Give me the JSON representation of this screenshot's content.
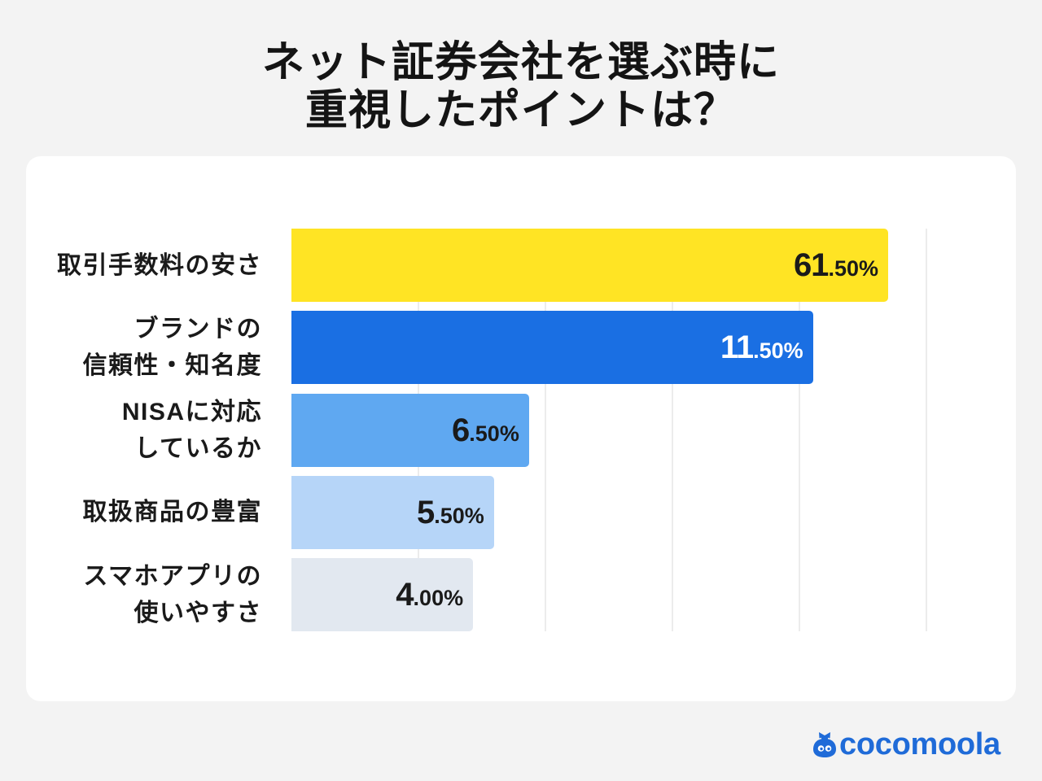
{
  "title": {
    "line1": "ネット証券会社を選ぶ時に",
    "line2": "重視したポイントは？"
  },
  "chart_data": {
    "type": "bar",
    "orientation": "horizontal",
    "categories": [
      "取引手数料の安さ",
      "ブランドの\n信頼性・知名度",
      "NISAに対応\nしているか",
      "取扱商品の豊富",
      "スマホアプリの\n使いやすさ"
    ],
    "values": [
      61.5,
      11.5,
      6.5,
      5.5,
      4.0
    ],
    "value_labels": [
      "61.50%",
      "11.50%",
      "6.50%",
      "5.50%",
      "4.00%"
    ],
    "unit": "%",
    "bar_colors": [
      "#FFE424",
      "#1A6FE3",
      "#5FA8F1",
      "#B6D5F8",
      "#E2E8F0"
    ],
    "label_colors": [
      "#1A1A1A",
      "#FFFFFF",
      "#1A1A1A",
      "#1A1A1A",
      "#1A1A1A"
    ],
    "grid": true
  },
  "logo": {
    "text": "cocomoola",
    "color": "#1F6BD8",
    "icon": "money-bag-icon"
  }
}
